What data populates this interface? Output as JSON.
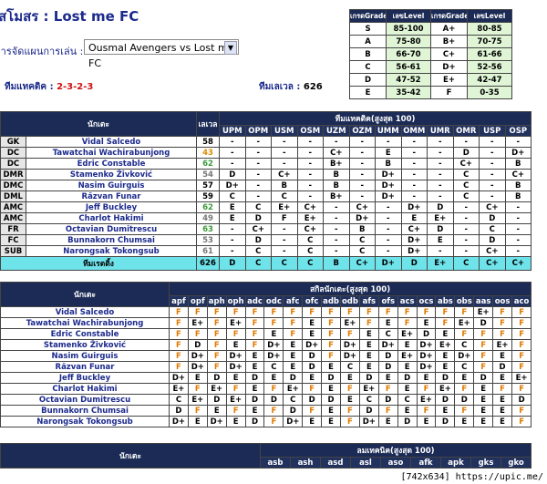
{
  "header": {
    "title": "สโมสร : Lost me FC",
    "formation_label": "การจัดแผนการเล่น :",
    "match_select": "Ousmal Avengers vs Lost me FC",
    "tactic_label": "ทีมแทคติค :",
    "tactic_value": "2-3-2-3",
    "level_label": "ทีมเลเวล :",
    "level_value": 626
  },
  "grade_table": {
    "headers": [
      "เกรดGrade",
      "เลขLevel",
      "เกรดGrade",
      "เลขLevel"
    ],
    "rows": [
      [
        "S",
        "85-100",
        "A+",
        "80-85"
      ],
      [
        "A",
        "75-80",
        "B+",
        "70-75"
      ],
      [
        "B",
        "66-70",
        "C+",
        "61-66"
      ],
      [
        "C",
        "56-61",
        "D+",
        "52-56"
      ],
      [
        "D",
        "47-52",
        "E+",
        "42-47"
      ],
      [
        "E",
        "35-42",
        "F",
        "0-35"
      ]
    ]
  },
  "table1": {
    "name_header": "นักเตะ",
    "level_header": "เลเวล",
    "group_header": "ทีมแทคติค(สูงสุด 100)",
    "columns": [
      "UPM",
      "OPM",
      "USM",
      "OSM",
      "UZM",
      "OZM",
      "UMM",
      "OMM",
      "UMR",
      "OMR",
      "USP",
      "OSP"
    ],
    "rows": [
      {
        "position": "GK",
        "name": "Vidal Salcedo",
        "level": 58,
        "level_color": "#000000",
        "grades": [
          "-",
          "-",
          "-",
          "-",
          "-",
          "-",
          "-",
          "-",
          "-",
          "-",
          "-",
          "-"
        ]
      },
      {
        "position": "DC",
        "name": "Tawatchai Wachirabunjong",
        "level": 43,
        "level_color": "#e08a00",
        "grades": [
          "-",
          "-",
          "-",
          "-",
          "C+",
          "-",
          "E",
          "-",
          "-",
          "D",
          "-",
          "D+"
        ]
      },
      {
        "position": "DC",
        "name": "Edric Constable",
        "level": 62,
        "level_color": "#3a9a3a",
        "grades": [
          "-",
          "-",
          "-",
          "-",
          "B+",
          "-",
          "B",
          "-",
          "-",
          "C+",
          "-",
          "B"
        ]
      },
      {
        "position": "DMR",
        "name": "Stamenko Živković",
        "level": 54,
        "level_color": "#777777",
        "grades": [
          "D",
          "-",
          "C+",
          "-",
          "B",
          "-",
          "D+",
          "-",
          "-",
          "C",
          "-",
          "C+"
        ]
      },
      {
        "position": "DMC",
        "name": "Nasim Guirguis",
        "level": 57,
        "level_color": "#000000",
        "grades": [
          "D+",
          "-",
          "B",
          "-",
          "B",
          "-",
          "D+",
          "-",
          "-",
          "C",
          "-",
          "B"
        ]
      },
      {
        "position": "DML",
        "name": "Răzvan Funar",
        "level": 59,
        "level_color": "#000000",
        "grades": [
          "C",
          "-",
          "C",
          "-",
          "B+",
          "-",
          "D+",
          "-",
          "-",
          "C",
          "-",
          "B"
        ]
      },
      {
        "position": "AMC",
        "name": "Jeff Buckley",
        "level": 62,
        "level_color": "#3a9a3a",
        "grades": [
          "E",
          "C",
          "E+",
          "C+",
          "-",
          "C+",
          "-",
          "D+",
          "D",
          "-",
          "C+",
          "-"
        ]
      },
      {
        "position": "AMC",
        "name": "Charlot Hakimi",
        "level": 49,
        "level_color": "#777777",
        "grades": [
          "E",
          "D",
          "F",
          "E+",
          "-",
          "D+",
          "-",
          "E",
          "E+",
          "-",
          "D",
          "-"
        ]
      },
      {
        "position": "FR",
        "name": "Octavian Dumitrescu",
        "level": 63,
        "level_color": "#3a9a3a",
        "grades": [
          "-",
          "C+",
          "-",
          "C+",
          "-",
          "B",
          "-",
          "C+",
          "D",
          "-",
          "C",
          "-"
        ]
      },
      {
        "position": "FC",
        "name": "Bunnakorn Chumsai",
        "level": 53,
        "level_color": "#777777",
        "grades": [
          "-",
          "D",
          "-",
          "C",
          "-",
          "C",
          "-",
          "D+",
          "E",
          "-",
          "D",
          "-"
        ]
      },
      {
        "position": "SUB",
        "name": "Narongsak Tokongsub",
        "level": 61,
        "level_color": "#777777",
        "grades": [
          "-",
          "C",
          "-",
          "C",
          "-",
          "C",
          "-",
          "D+",
          "-",
          "-",
          "C+",
          "-"
        ]
      }
    ],
    "total": {
      "label": "ทีมเรตติ้ง",
      "level": 626,
      "grades": [
        "D",
        "C",
        "C",
        "C",
        "B",
        "C+",
        "D+",
        "D",
        "E+",
        "C",
        "C+",
        "C+"
      ]
    }
  },
  "table2": {
    "name_header": "นักเตะ",
    "group_header": "สกิลนักเตะ(สูงสุด 100)",
    "columns": [
      "apf",
      "opf",
      "aph",
      "oph",
      "adc",
      "odc",
      "afc",
      "ofc",
      "adb",
      "odb",
      "afs",
      "ofs",
      "acs",
      "ocs",
      "abs",
      "obs",
      "aas",
      "oos",
      "aco"
    ],
    "rows": [
      {
        "name": "Vidal Salcedo",
        "grades": [
          "F",
          "F",
          "F",
          "F",
          "F",
          "F",
          "F",
          "F",
          "F",
          "F",
          "F",
          "F",
          "F",
          "F",
          "F",
          "F",
          "E+",
          "F",
          "F"
        ]
      },
      {
        "name": "Tawatchai Wachirabunjong",
        "grades": [
          "F",
          "E+",
          "F",
          "E+",
          "F",
          "F",
          "F",
          "E",
          "F",
          "E+",
          "F",
          "E",
          "F",
          "E",
          "F",
          "E+",
          "D",
          "F",
          "F"
        ]
      },
      {
        "name": "Edric Constable",
        "grades": [
          "F",
          "F",
          "F",
          "F",
          "F",
          "E",
          "F",
          "E",
          "F",
          "F",
          "E",
          "C",
          "E+",
          "D",
          "E",
          "F",
          "F",
          "F",
          "F"
        ]
      },
      {
        "name": "Stamenko Živković",
        "grades": [
          "F",
          "D",
          "F",
          "E",
          "F",
          "D+",
          "E",
          "D+",
          "F",
          "D+",
          "E",
          "D+",
          "E",
          "D+",
          "E+",
          "C",
          "F",
          "E+",
          "F"
        ]
      },
      {
        "name": "Nasim Guirguis",
        "grades": [
          "F",
          "D+",
          "F",
          "D+",
          "E",
          "D+",
          "E",
          "D",
          "F",
          "D+",
          "E",
          "D",
          "E+",
          "D+",
          "E",
          "D+",
          "F",
          "E",
          "F"
        ]
      },
      {
        "name": "Răzvan Funar",
        "grades": [
          "F",
          "D+",
          "F",
          "D+",
          "E",
          "C",
          "E",
          "D",
          "E",
          "C",
          "E",
          "D",
          "E",
          "D+",
          "E",
          "C",
          "F",
          "D",
          "F"
        ]
      },
      {
        "name": "Jeff Buckley",
        "grades": [
          "D+",
          "E",
          "D",
          "E",
          "D",
          "E",
          "D",
          "E",
          "D",
          "E",
          "D",
          "E",
          "D",
          "E",
          "D",
          "E",
          "D",
          "E",
          "E+"
        ]
      },
      {
        "name": "Charlot Hakimi",
        "grades": [
          "E+",
          "F",
          "E+",
          "F",
          "E",
          "F",
          "E+",
          "F",
          "E",
          "F",
          "E+",
          "F",
          "E",
          "F",
          "E+",
          "F",
          "E",
          "F",
          "F"
        ]
      },
      {
        "name": "Octavian Dumitrescu",
        "grades": [
          "C",
          "E+",
          "D",
          "E+",
          "D",
          "D",
          "C",
          "D",
          "D",
          "E",
          "C",
          "D",
          "C",
          "E+",
          "D",
          "D",
          "E",
          "E",
          "D"
        ]
      },
      {
        "name": "Bunnakorn Chumsai",
        "grades": [
          "D",
          "F",
          "E",
          "F",
          "E",
          "F",
          "D",
          "F",
          "E",
          "F",
          "D",
          "F",
          "E",
          "F",
          "E",
          "F",
          "E",
          "E",
          "F"
        ]
      },
      {
        "name": "Narongsak Tokongsub",
        "grades": [
          "D+",
          "E",
          "D+",
          "E",
          "D",
          "F",
          "D+",
          "E",
          "E",
          "F",
          "D+",
          "E",
          "D",
          "E",
          "D",
          "E",
          "E",
          "E",
          "F"
        ]
      }
    ]
  },
  "table3": {
    "name_header": "นักเตะ",
    "group_header": "ลมเทคนิค(สูงสุด 100)",
    "columns": [
      "asb",
      "ash",
      "asd",
      "asl",
      "aso",
      "afk",
      "apk",
      "gks",
      "gko"
    ]
  },
  "watermark": "[742x634] https://upic.me/"
}
